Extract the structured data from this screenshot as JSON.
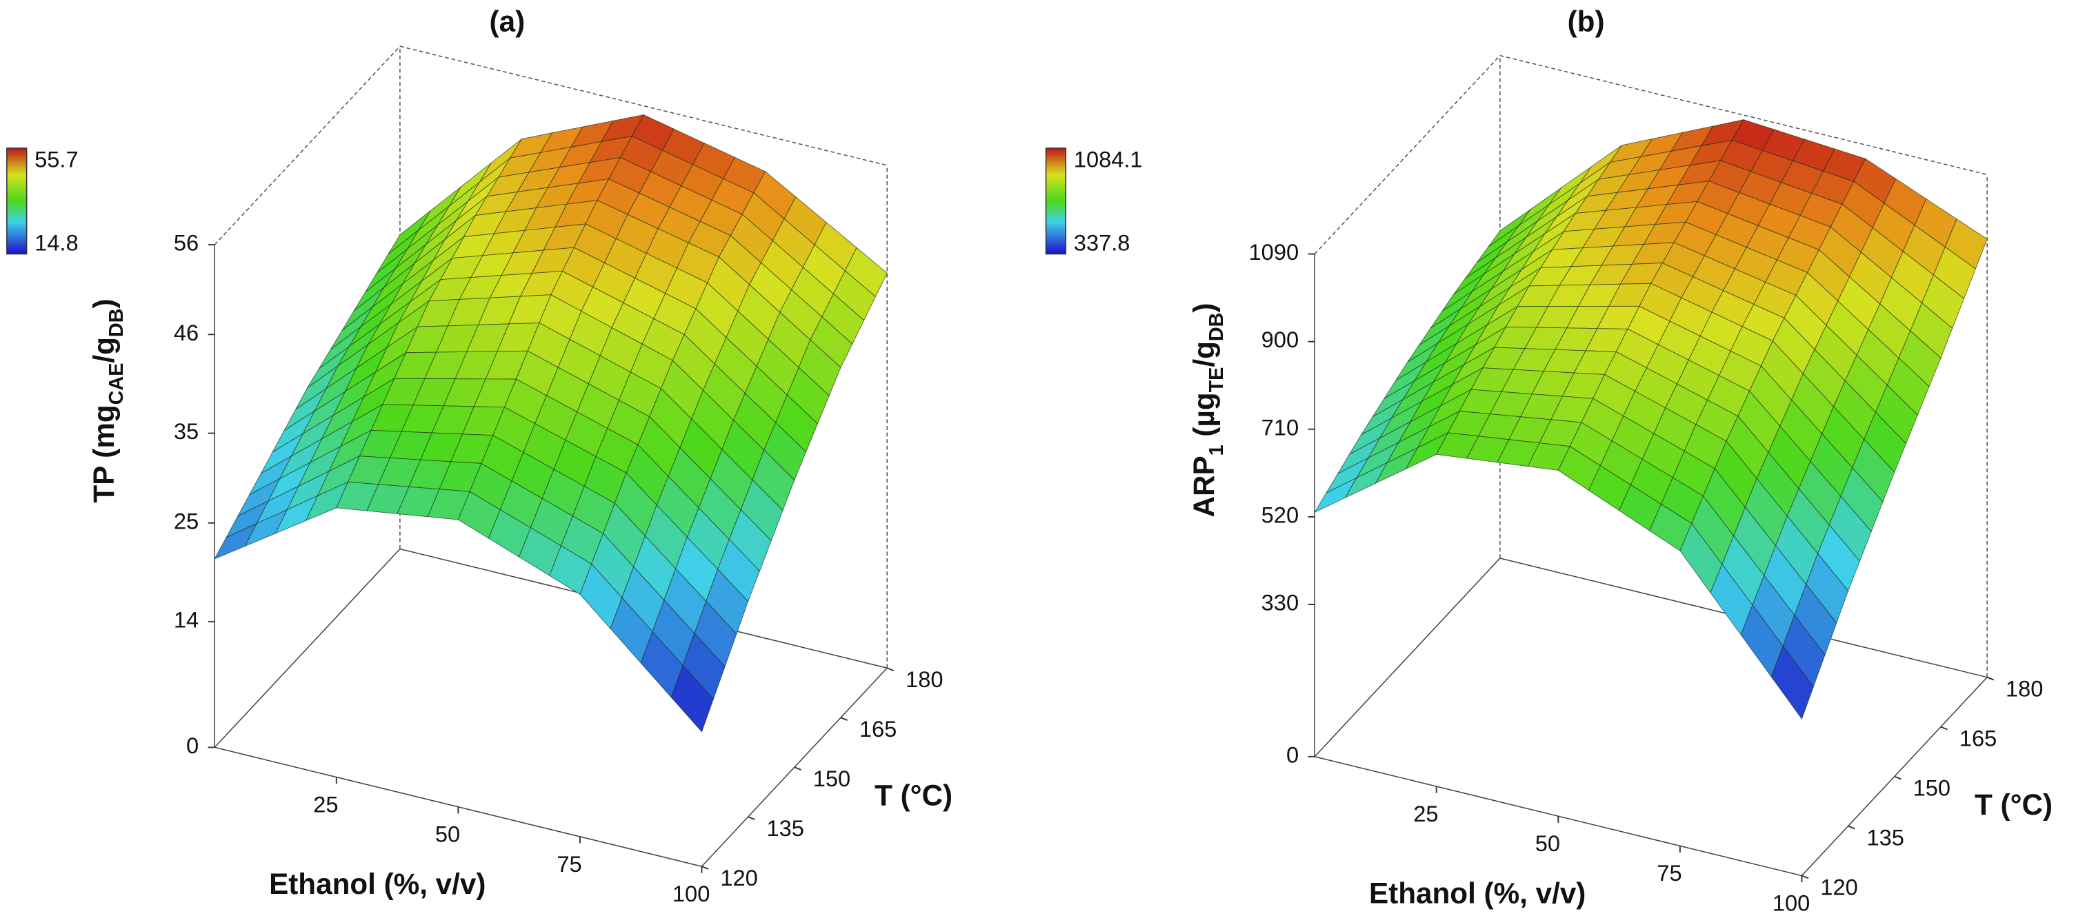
{
  "chart_data": [
    {
      "type": "surface",
      "title": "(a)",
      "zlabel_parts": [
        {
          "text": "TP (mg",
          "sub": false
        },
        {
          "text": "CAE",
          "sub": true
        },
        {
          "text": "/g",
          "sub": false
        },
        {
          "text": "DB",
          "sub": true
        },
        {
          "text": ")",
          "sub": false
        }
      ],
      "xlabel": "Ethanol (%, v/v)",
      "ylabel": "T (°C)",
      "x": [
        0,
        25,
        50,
        75,
        100
      ],
      "y": [
        120,
        135,
        150,
        165,
        180
      ],
      "z": [
        [
          21,
          30,
          32,
          27,
          15
        ],
        [
          25,
          36,
          39,
          35,
          24
        ],
        [
          29,
          42,
          46,
          42,
          32
        ],
        [
          32,
          46,
          51,
          48,
          39
        ],
        [
          35,
          49,
          55,
          52,
          44
        ]
      ],
      "xlim": [
        0,
        100
      ],
      "ylim": [
        120,
        180
      ],
      "zlim": [
        0,
        56
      ],
      "xticks": [
        25,
        50,
        75,
        100
      ],
      "yticks": [
        120,
        135,
        150,
        165,
        180
      ],
      "zticks": [
        0,
        14,
        25,
        35,
        46,
        56
      ],
      "colorbar": {
        "max": 55.7,
        "min": 14.8
      }
    },
    {
      "type": "surface",
      "title": "(b)",
      "zlabel_parts": [
        {
          "text": "ARP",
          "sub": false
        },
        {
          "text": "1",
          "sub": true
        },
        {
          "text": " (µg",
          "sub": false
        },
        {
          "text": "TE",
          "sub": true
        },
        {
          "text": "/g",
          "sub": false
        },
        {
          "text": "DB",
          "sub": true
        },
        {
          "text": ")",
          "sub": false
        }
      ],
      "xlabel": "Ethanol (%, v/v)",
      "ylabel": "T (°C)",
      "x": [
        0,
        25,
        50,
        75,
        100
      ],
      "y": [
        120,
        135,
        150,
        165,
        180
      ],
      "z": [
        [
          530,
          720,
          750,
          640,
          340
        ],
        [
          590,
          800,
          850,
          770,
          510
        ],
        [
          640,
          870,
          940,
          880,
          660
        ],
        [
          680,
          920,
          1010,
          970,
          800
        ],
        [
          710,
          960,
          1080,
          1060,
          950
        ]
      ],
      "xlim": [
        0,
        100
      ],
      "ylim": [
        120,
        180
      ],
      "zlim": [
        0,
        1090
      ],
      "xticks": [
        25,
        50,
        75,
        100
      ],
      "yticks": [
        120,
        135,
        150,
        165,
        180
      ],
      "zticks": [
        0,
        330,
        520,
        710,
        900,
        1090
      ],
      "colorbar": {
        "max": 1084.1,
        "min": 337.8
      }
    }
  ]
}
